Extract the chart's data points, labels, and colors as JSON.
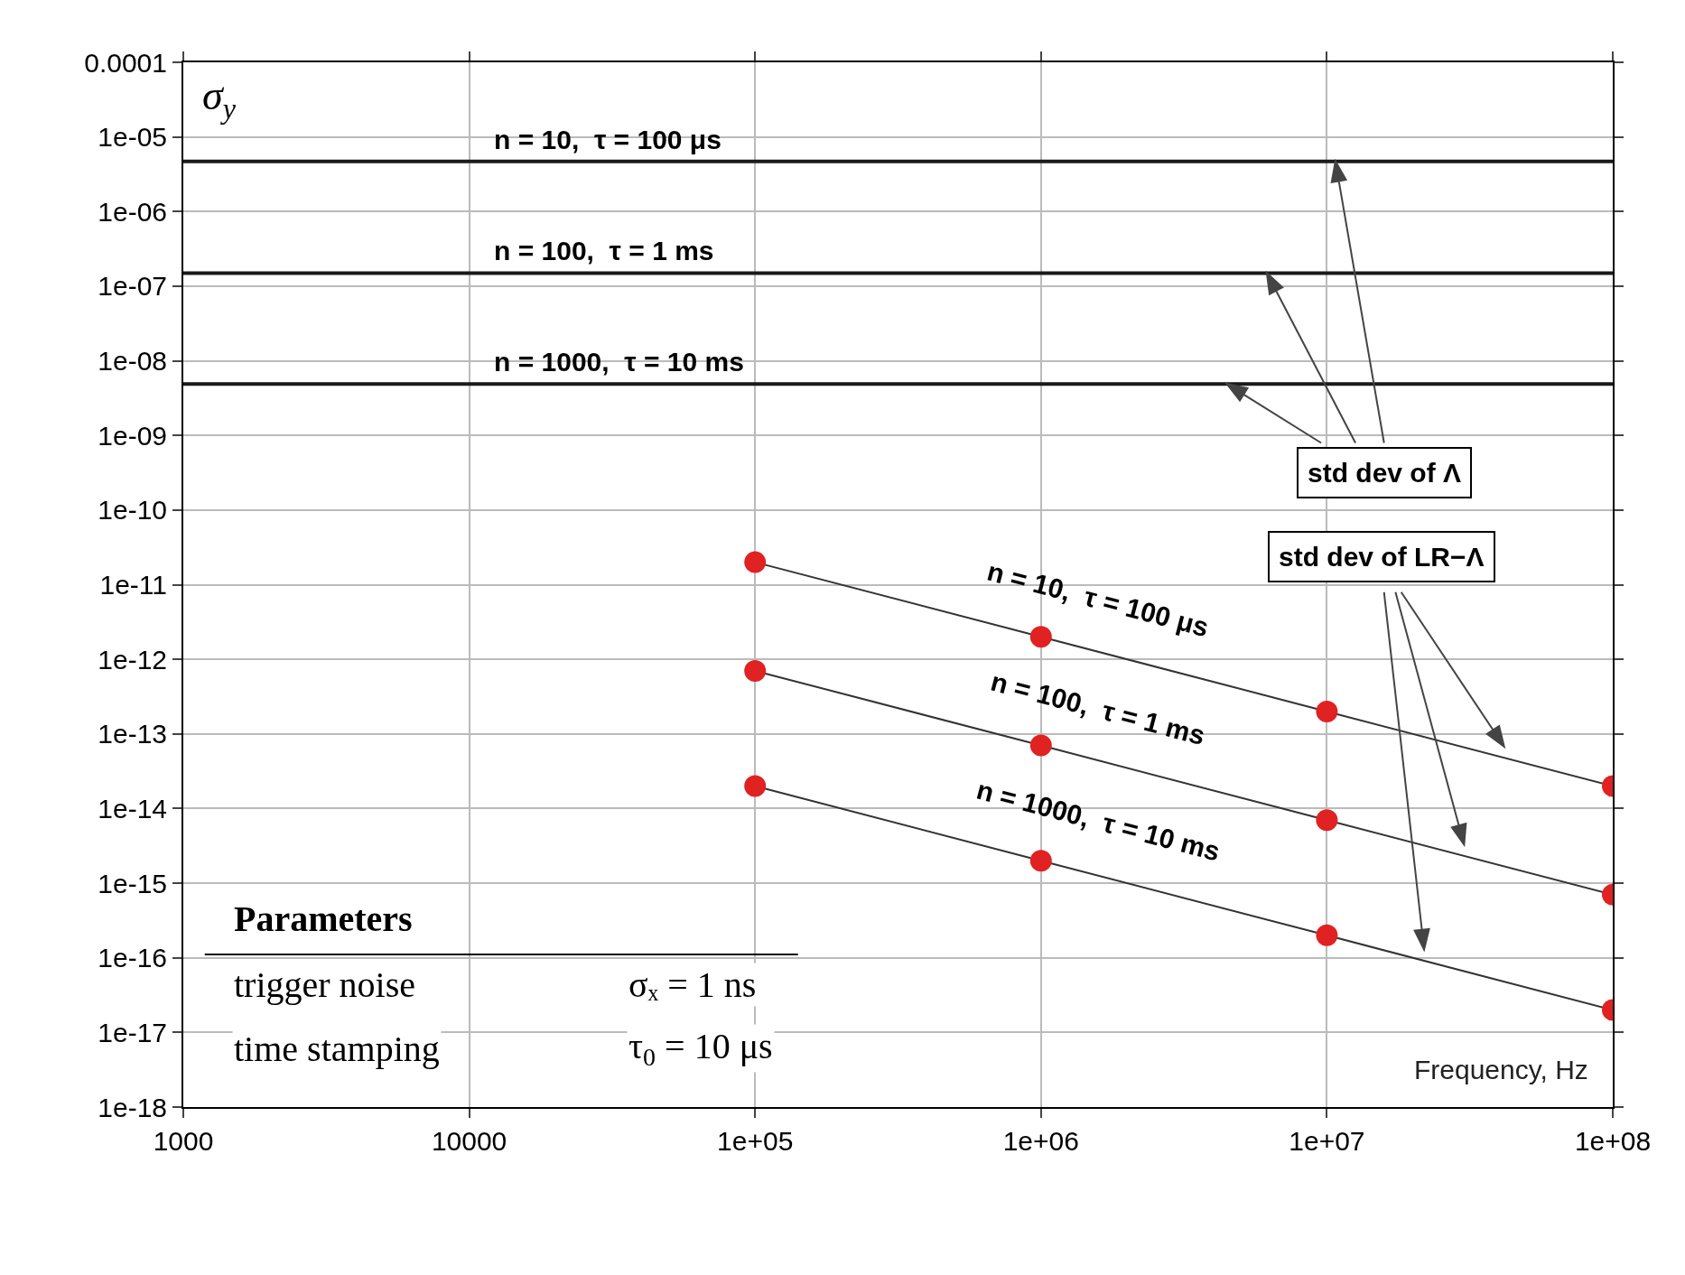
{
  "chart_data": {
    "type": "line",
    "xlabel": "Frequency, Hz",
    "ylabel": "σ$_{y}$",
    "log": "xy",
    "grid": true,
    "legend": false,
    "xlim": [
      1000,
      100000000
    ],
    "ylim": [
      1e-18,
      0.0001
    ],
    "xticks": [
      1000,
      10000,
      {
        "value": 100000,
        "label": "1e+05"
      },
      {
        "value": 1000000,
        "label": "1e+06"
      },
      {
        "value": 10000000,
        "label": "1e+07"
      },
      {
        "value": 100000000,
        "label": "1e+08"
      }
    ],
    "yticks": [
      {
        "value": 1e-18,
        "label": "1e-18"
      },
      {
        "value": 1e-17,
        "label": "1e-17"
      },
      {
        "value": 1e-16,
        "label": "1e-16"
      },
      {
        "value": 1e-15,
        "label": "1e-15"
      },
      {
        "value": 1e-14,
        "label": "1e-14"
      },
      {
        "value": 1e-13,
        "label": "1e-13"
      },
      {
        "value": 1e-12,
        "label": "1e-12"
      },
      {
        "value": 1e-11,
        "label": "1e-11"
      },
      {
        "value": 1e-10,
        "label": "1e-10"
      },
      {
        "value": 1e-09,
        "label": "1e-09"
      },
      {
        "value": 1e-08,
        "label": "1e-08"
      },
      {
        "value": 1e-07,
        "label": "1e-07"
      },
      {
        "value": 1e-06,
        "label": "1e-06"
      },
      {
        "value": 1e-05,
        "label": "1e-05"
      },
      0.0001
    ],
    "series": [
      {
        "name": "n = 10,  τ = 100 μs",
        "color": "#1a1a1a",
        "marker": "none",
        "x": [
          1000,
          100000000
        ],
        "values": [
          4.7e-06,
          4.7e-06
        ]
      },
      {
        "name": "n = 100,  τ = 1 ms",
        "color": "#1a1a1a",
        "marker": "none",
        "x": [
          1000,
          100000000
        ],
        "values": [
          1.5e-07,
          1.5e-07
        ]
      },
      {
        "name": "n = 1000,  τ = 10 ms",
        "color": "#1a1a1a",
        "marker": "none",
        "x": [
          1000,
          100000000
        ],
        "values": [
          4.9e-09,
          4.9e-09
        ]
      },
      {
        "name": "n = 10,  τ = 100 μs",
        "color": "#e02222",
        "marker": "circle",
        "x": [
          100000,
          1000000,
          10000000,
          100000000
        ],
        "values": [
          2e-11,
          2e-12,
          2e-13,
          2e-14
        ]
      },
      {
        "name": "n = 100,  τ = 1 ms",
        "color": "#e02222",
        "marker": "circle",
        "x": [
          100000,
          1000000,
          10000000,
          100000000
        ],
        "values": [
          7e-13,
          7e-14,
          7e-15,
          7e-16
        ]
      },
      {
        "name": "n = 1000,  τ = 10 ms",
        "color": "#e02222",
        "marker": "circle",
        "x": [
          100000,
          1000000,
          10000000,
          100000000
        ],
        "values": [
          2e-14,
          2e-15,
          2e-16,
          2e-17
        ]
      }
    ],
    "annotations": [
      "std dev of Λ",
      "std dev of LR−Λ",
      "Parameters",
      "trigger noise",
      "σₓ = 1 ns",
      "time stamping",
      "τ$_{0}$ = 10 μs"
    ]
  }
}
